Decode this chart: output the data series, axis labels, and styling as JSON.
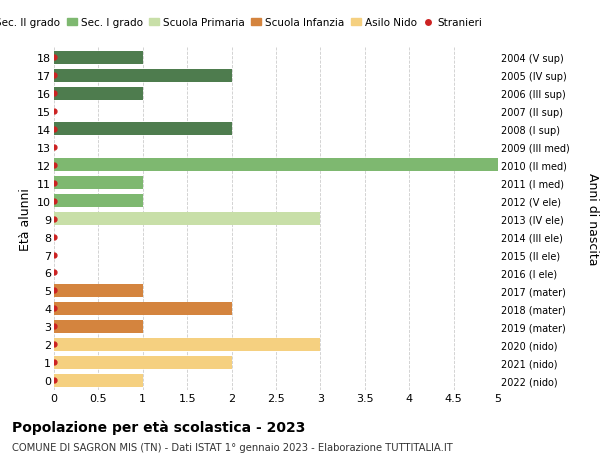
{
  "ages": [
    18,
    17,
    16,
    15,
    14,
    13,
    12,
    11,
    10,
    9,
    8,
    7,
    6,
    5,
    4,
    3,
    2,
    1,
    0
  ],
  "right_labels": [
    "2004 (V sup)",
    "2005 (IV sup)",
    "2006 (III sup)",
    "2007 (II sup)",
    "2008 (I sup)",
    "2009 (III med)",
    "2010 (II med)",
    "2011 (I med)",
    "2012 (V ele)",
    "2013 (IV ele)",
    "2014 (III ele)",
    "2015 (II ele)",
    "2016 (I ele)",
    "2017 (mater)",
    "2018 (mater)",
    "2019 (mater)",
    "2020 (nido)",
    "2021 (nido)",
    "2022 (nido)"
  ],
  "bar_values": [
    1,
    2,
    1,
    0,
    2,
    0,
    5,
    1,
    1,
    3,
    0,
    0,
    0,
    1,
    2,
    1,
    3,
    2,
    1
  ],
  "bar_colors": [
    "#4e7c4e",
    "#4e7c4e",
    "#4e7c4e",
    "#4e7c4e",
    "#4e7c4e",
    "#4e7c4e",
    "#7eb870",
    "#7eb870",
    "#7eb870",
    "#c8dfa8",
    "#c8dfa8",
    "#c8dfa8",
    "#c8dfa8",
    "#d4843e",
    "#d4843e",
    "#d4843e",
    "#f5d080",
    "#f5d080",
    "#f5d080"
  ],
  "legend_labels": [
    "Sec. II grado",
    "Sec. I grado",
    "Scuola Primaria",
    "Scuola Infanzia",
    "Asilo Nido",
    "Stranieri"
  ],
  "legend_colors": [
    "#4e7c4e",
    "#7eb870",
    "#c8dfa8",
    "#d4843e",
    "#f5d080",
    "#cc2222"
  ],
  "legend_marker_types": [
    "bar",
    "bar",
    "bar",
    "bar",
    "bar",
    "dot"
  ],
  "stranieri_dot_color": "#cc2222",
  "title": "Popolazione per età scolastica - 2023",
  "subtitle": "COMUNE DI SAGRON MIS (TN) - Dati ISTAT 1° gennaio 2023 - Elaborazione TUTTITALIA.IT",
  "ylabel_left": "Età alunni",
  "ylabel_right": "Anni di nascita",
  "xlim": [
    0,
    5.0
  ],
  "xticks": [
    0,
    0.5,
    1.0,
    1.5,
    2.0,
    2.5,
    3.0,
    3.5,
    4.0,
    4.5,
    5.0
  ],
  "background_color": "#ffffff",
  "grid_color": "#cccccc",
  "bar_height": 0.72,
  "ylim_bottom": -0.55,
  "ylim_top": 18.55
}
